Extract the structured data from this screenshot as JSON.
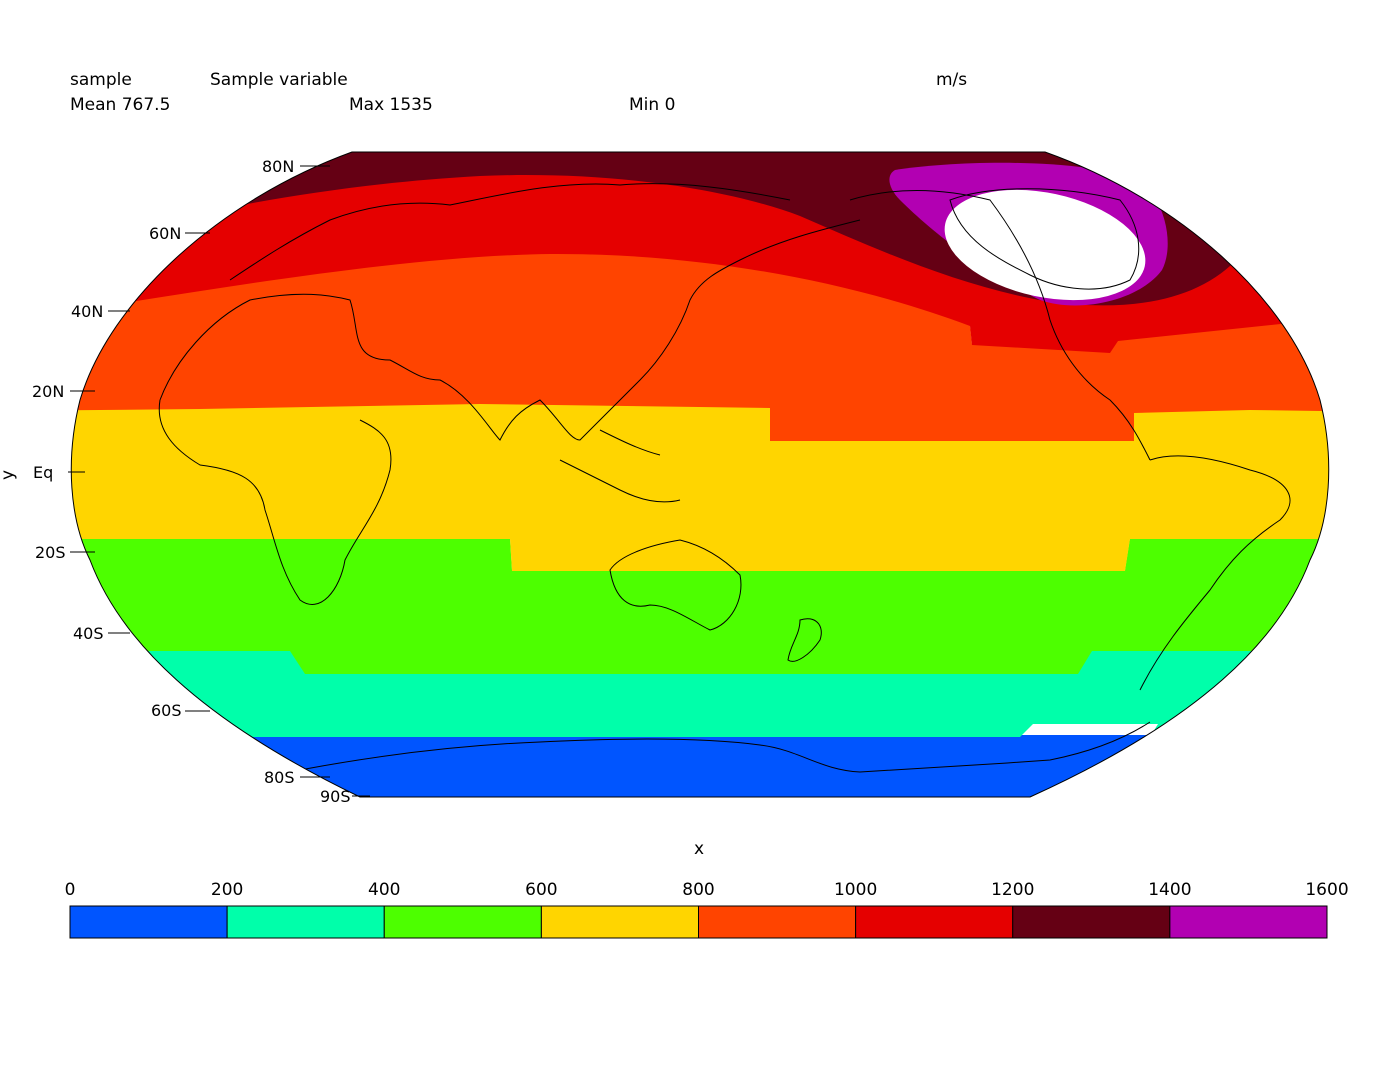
{
  "header": {
    "name": "sample",
    "long_name": "Sample variable",
    "units": "m/s",
    "mean_label": "Mean 767.5",
    "max_label": "Max 1535",
    "min_label": "Min 0"
  },
  "axes": {
    "xlabel": "x",
    "ylabel": "y",
    "lat_ticks": [
      "80N",
      "60N",
      "40N",
      "20N",
      "Eq",
      "20S",
      "40S",
      "60S",
      "80S",
      "90S"
    ]
  },
  "colorbar": {
    "levels": [
      0,
      200,
      400,
      600,
      800,
      1000,
      1200,
      1400,
      1600
    ],
    "labels": [
      "0",
      "200",
      "400",
      "600",
      "800",
      "1000",
      "1200",
      "1400",
      "1600"
    ],
    "colors": [
      "#0055ff",
      "#00ffaa",
      "#4dff00",
      "#ffd500",
      "#ff4400",
      "#e50000",
      "#650014",
      "#b200b2"
    ]
  },
  "chart_data": {
    "type": "heatmap",
    "projection": "robinson",
    "title": "Sample variable",
    "units": "m/s",
    "xlabel": "x",
    "ylabel": "y",
    "stats": {
      "mean": 767.5,
      "max": 1535,
      "min": 0
    },
    "levels": [
      0,
      200,
      400,
      600,
      800,
      1000,
      1200,
      1400,
      1600
    ],
    "band_colors": [
      "#0055ff",
      "#00ffaa",
      "#4dff00",
      "#ffd500",
      "#ff4400",
      "#e50000",
      "#650014",
      "#b200b2"
    ]
  }
}
